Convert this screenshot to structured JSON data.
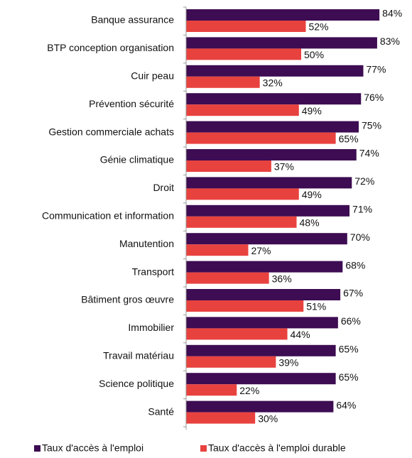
{
  "chart_data": {
    "type": "bar",
    "orientation": "horizontal",
    "categories": [
      "Banque assurance",
      "BTP conception organisation",
      "Cuir peau",
      "Prévention sécurité",
      "Gestion commerciale achats",
      "Génie climatique",
      "Droit",
      "Communication et information",
      "Manutention",
      "Transport",
      "Bâtiment gros œuvre",
      "Immobilier",
      "Travail matériau",
      "Science politique",
      "Santé"
    ],
    "series": [
      {
        "name": "Taux d'accès à l'emploi",
        "color": "#3d0c52",
        "values": [
          84,
          83,
          77,
          76,
          75,
          74,
          72,
          71,
          70,
          68,
          67,
          66,
          65,
          65,
          64
        ],
        "value_labels": [
          "84%",
          "83%",
          "77%",
          "76%",
          "75%",
          "74%",
          "72%",
          "71%",
          "70%",
          "68%",
          "67%",
          "66%",
          "65%",
          "65%",
          "64%"
        ]
      },
      {
        "name": "Taux d'accès à l'emploi durable",
        "color": "#e8423f",
        "values": [
          52,
          50,
          32,
          49,
          65,
          37,
          49,
          48,
          27,
          36,
          51,
          44,
          39,
          22,
          30
        ],
        "value_labels": [
          "52%",
          "50%",
          "32%",
          "49%",
          "65%",
          "37%",
          "49%",
          "48%",
          "27%",
          "36%",
          "51%",
          "44%",
          "39%",
          "22%",
          "30%"
        ]
      }
    ],
    "legend": "bottom"
  }
}
